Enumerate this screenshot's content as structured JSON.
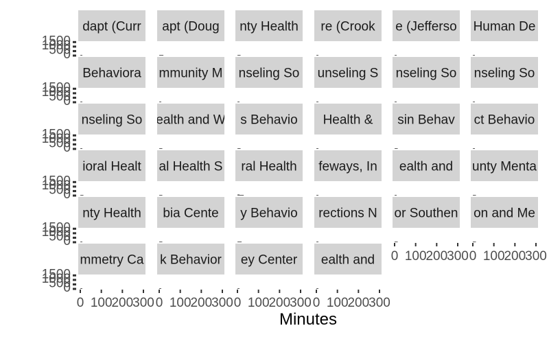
{
  "chart_data": {
    "type": "bar",
    "layout": "facet_wrap",
    "ncol": 6,
    "nrow": 6,
    "xlabel": "Minutes",
    "ylabel": "",
    "xlim": [
      0,
      300
    ],
    "x_ticks": [
      "0",
      "100",
      "200",
      "300"
    ],
    "y_tick_labels": [
      "0",
      "500",
      "1000",
      "1500"
    ],
    "grid": false,
    "panel_fill": "#ffffff",
    "strip_fill": "#d3d3d3",
    "bar_color": "#595959",
    "panels": [
      {
        "strip": "dapt (Curr",
        "bars": [
          [
            5,
            12
          ]
        ]
      },
      {
        "strip": "apt (Doug",
        "bars": [
          [
            5,
            40
          ],
          [
            10,
            25
          ],
          [
            15,
            10
          ]
        ]
      },
      {
        "strip": "nty Health",
        "bars": [
          [
            5,
            20
          ],
          [
            10,
            12
          ]
        ]
      },
      {
        "strip": "re (Crook",
        "bars": [
          [
            5,
            12
          ]
        ]
      },
      {
        "strip": "e (Jefferso",
        "bars": [
          [
            5,
            10
          ]
        ]
      },
      {
        "strip": "Human De",
        "bars": [
          [
            5,
            15
          ]
        ]
      },
      {
        "strip": "Behaviora",
        "bars": [
          [
            5,
            10
          ]
        ]
      },
      {
        "strip": "mmunity M",
        "bars": [
          [
            5,
            12
          ]
        ]
      },
      {
        "strip": "nseling So",
        "bars": [
          [
            5,
            10
          ]
        ]
      },
      {
        "strip": "unseling S",
        "bars": [
          [
            5,
            10
          ]
        ]
      },
      {
        "strip": "nseling So",
        "bars": [
          [
            5,
            10
          ]
        ]
      },
      {
        "strip": "nseling So",
        "bars": [
          [
            5,
            10
          ]
        ]
      },
      {
        "strip": "nseling So",
        "bars": [
          [
            5,
            10
          ]
        ]
      },
      {
        "strip": "ealth and W",
        "bars": [
          [
            5,
            15
          ],
          [
            10,
            10
          ]
        ]
      },
      {
        "strip": "s Behavio",
        "bars": [
          [
            5,
            25
          ],
          [
            10,
            10
          ]
        ]
      },
      {
        "strip": "Health &",
        "bars": [
          [
            5,
            10
          ]
        ]
      },
      {
        "strip": "sin Behav",
        "bars": [
          [
            5,
            60
          ],
          [
            10,
            25
          ]
        ]
      },
      {
        "strip": "ct Behavio",
        "bars": [
          [
            5,
            10
          ]
        ]
      },
      {
        "strip": "ioral Healt",
        "bars": [
          [
            5,
            30
          ],
          [
            10,
            15
          ]
        ]
      },
      {
        "strip": "al Health S",
        "bars": [
          [
            5,
            20
          ],
          [
            10,
            10
          ]
        ]
      },
      {
        "strip": "ral Health",
        "bars": [
          [
            5,
            120
          ],
          [
            10,
            60
          ],
          [
            15,
            30
          ],
          [
            20,
            15
          ],
          [
            25,
            12
          ]
        ]
      },
      {
        "strip": "feways, In",
        "bars": [
          [
            5,
            10
          ]
        ]
      },
      {
        "strip": "ealth and",
        "bars": [
          [
            5,
            10
          ]
        ]
      },
      {
        "strip": "unty Menta",
        "bars": [
          [
            5,
            20
          ],
          [
            10,
            10
          ]
        ]
      },
      {
        "strip": "nty Health",
        "bars": [
          [
            5,
            15
          ]
        ]
      },
      {
        "strip": "bia Cente",
        "bars": [
          [
            5,
            15
          ],
          [
            10,
            10
          ]
        ]
      },
      {
        "strip": "y Behavio",
        "bars": [
          [
            5,
            60
          ],
          [
            10,
            30
          ],
          [
            15,
            12
          ]
        ]
      },
      {
        "strip": "rections N",
        "bars": [
          [
            5,
            10
          ]
        ]
      },
      {
        "strip": "or Southen",
        "bars": [
          [
            5,
            30
          ],
          [
            10,
            10
          ]
        ]
      },
      {
        "strip": "on and Me",
        "bars": [
          [
            5,
            40
          ],
          [
            10,
            15
          ]
        ]
      },
      {
        "strip": "mmetry Ca",
        "bars": [
          [
            5,
            12
          ]
        ]
      },
      {
        "strip": "k Behavior",
        "bars": [
          [
            5,
            10
          ]
        ]
      },
      {
        "strip": "ey Center",
        "bars": [
          [
            5,
            10
          ]
        ]
      },
      {
        "strip": "ealth and",
        "bars": [
          [
            5,
            10
          ]
        ]
      }
    ]
  }
}
